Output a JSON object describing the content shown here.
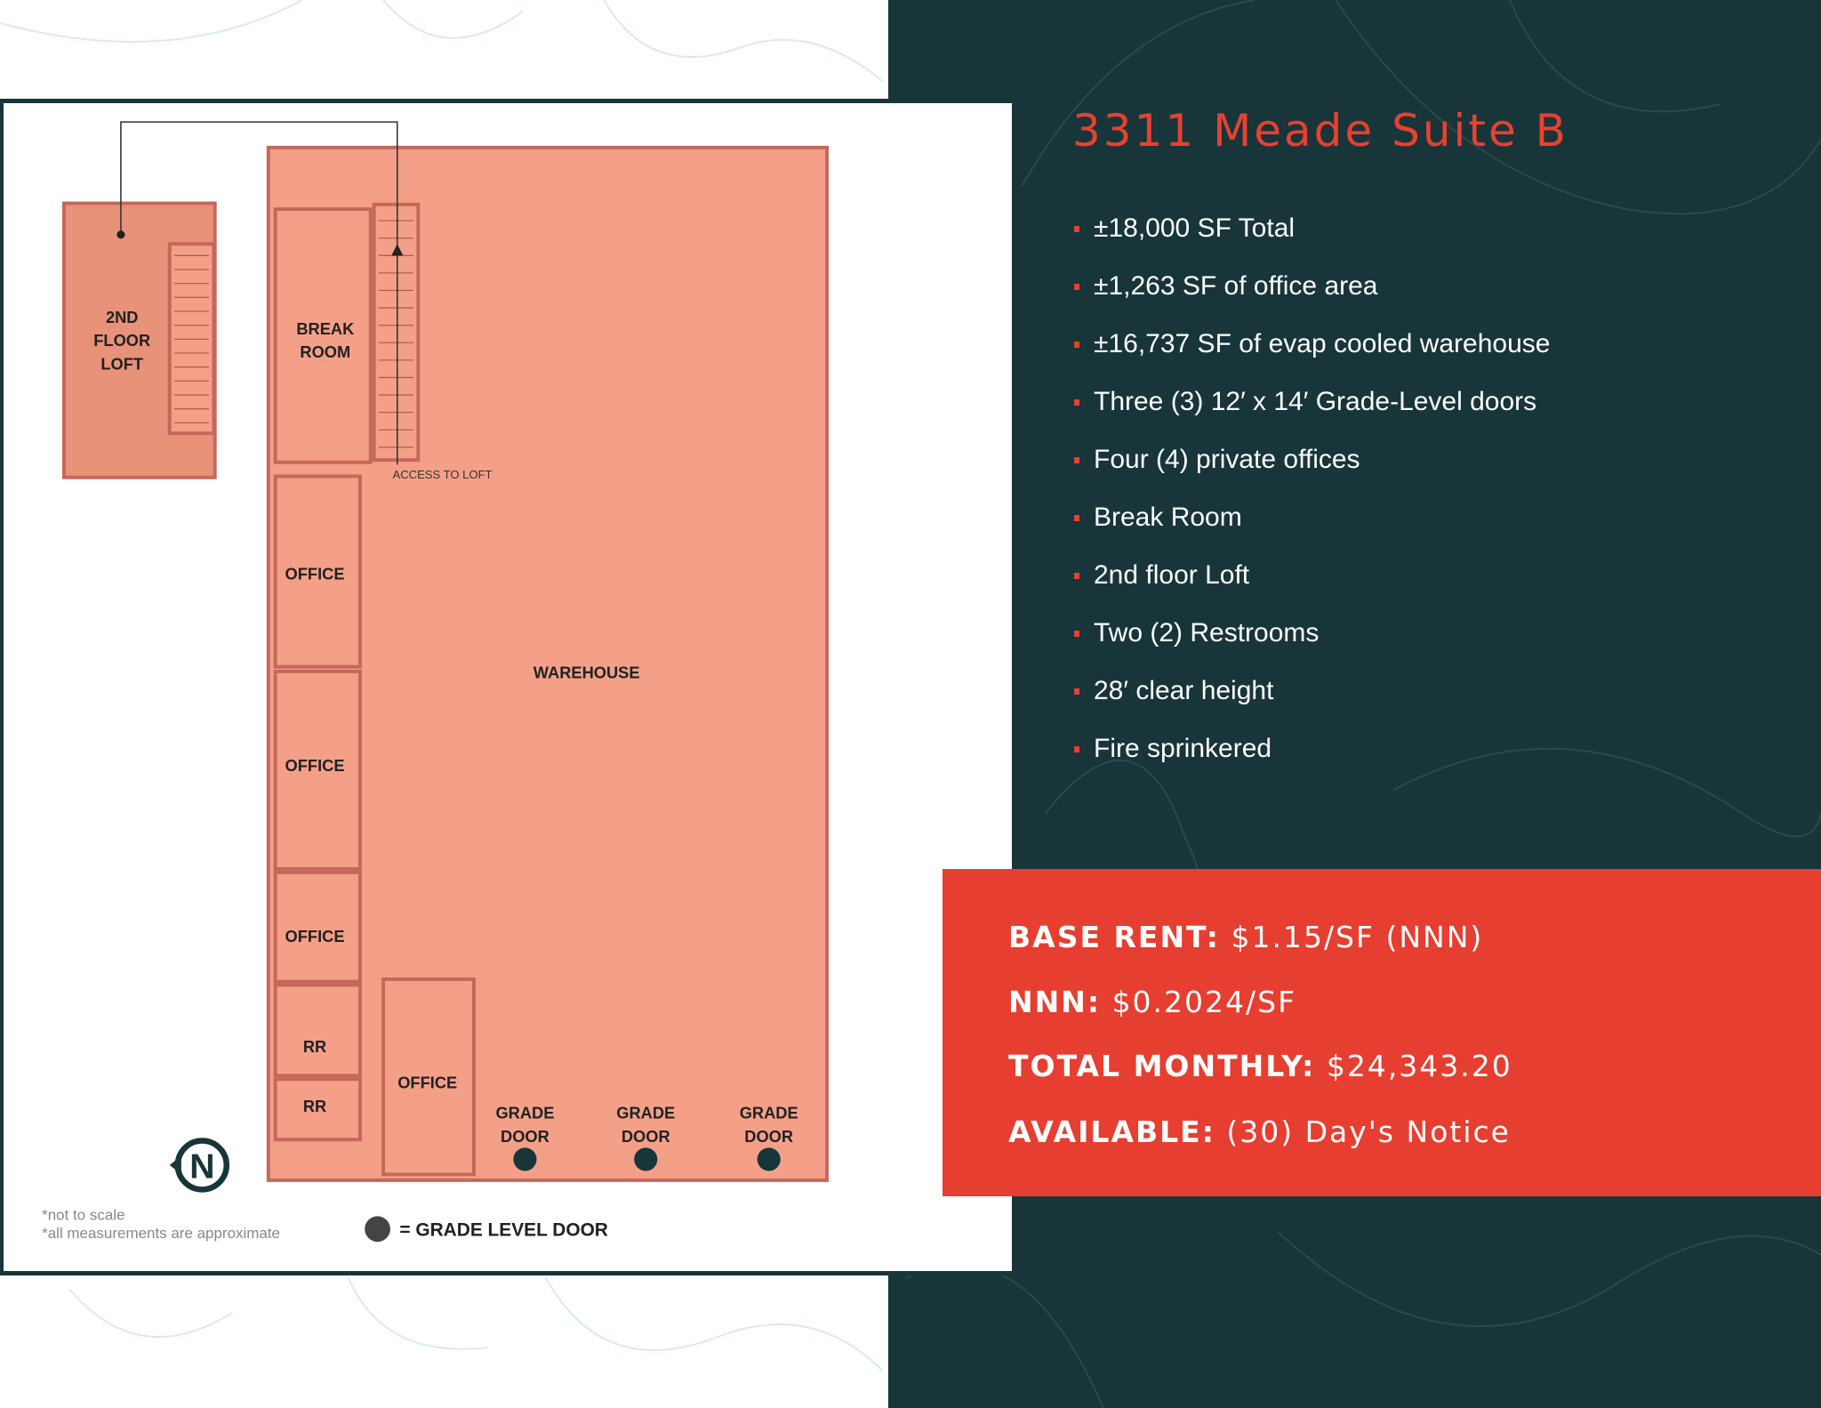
{
  "listing": {
    "title": "3311 Meade Suite B",
    "features": [
      "±18,000 SF Total",
      "±1,263 SF of office area",
      "±16,737 SF of evap cooled warehouse",
      "Three (3) 12′ x 14′ Grade-Level doors",
      "Four (4) private offices",
      "Break Room",
      "2nd floor Loft",
      "Two (2) Restrooms",
      "28′ clear height",
      "Fire sprinkered"
    ]
  },
  "pricing": {
    "base_rent_label": "BASE RENT:",
    "base_rent_value": "$1.15/SF (NNN)",
    "nnn_label": "NNN:",
    "nnn_value": "$0.2024/SF",
    "total_label": "TOTAL MONTHLY:",
    "total_value": "$24,343.20",
    "available_label": "AVAILABLE:",
    "available_value": "(30) Day's Notice"
  },
  "floorplan": {
    "loft": [
      "2ND",
      "FLOOR",
      "LOFT"
    ],
    "break_room": [
      "BREAK",
      "ROOM"
    ],
    "access_to_loft": "ACCESS TO LOFT",
    "office": "OFFICE",
    "restroom": "RR",
    "warehouse": "WAREHOUSE",
    "grade_door": [
      "GRADE",
      "DOOR"
    ],
    "compass": "N",
    "notes": [
      "*not to scale",
      "*all measurements are approximate"
    ],
    "legend": "= GRADE LEVEL DOOR"
  },
  "colors": {
    "dark_teal": "#18353a",
    "accent_red": "#e8412f",
    "room_fill": "#f4a088",
    "wall": "#c4685a"
  }
}
